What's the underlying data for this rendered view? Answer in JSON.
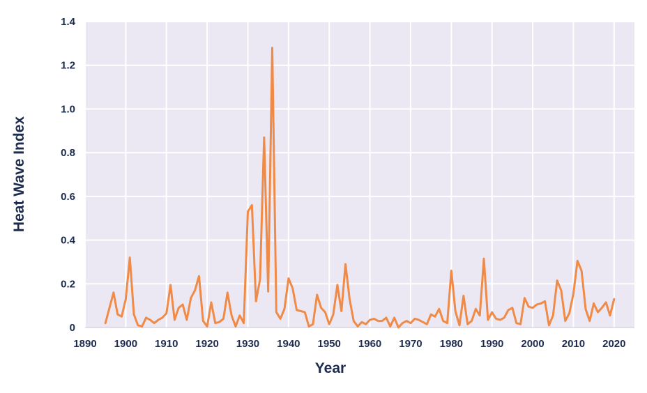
{
  "chart_data": {
    "type": "line",
    "title": "",
    "xlabel": "Year",
    "ylabel": "Heat Wave Index",
    "xlim": [
      1890,
      2025
    ],
    "ylim": [
      0,
      1.4
    ],
    "x_ticks": [
      1890,
      1900,
      1910,
      1920,
      1930,
      1940,
      1950,
      1960,
      1970,
      1980,
      1990,
      2000,
      2010,
      2020
    ],
    "y_ticks": [
      "0",
      "0.2",
      "0.4",
      "0.6",
      "0.8",
      "1.0",
      "1.2",
      "1.4"
    ],
    "grid": true,
    "colors": {
      "line": "#f08a47",
      "plot_background": "#ebe8f3",
      "grid": "#ffffff",
      "text": "#1d2b4f"
    },
    "series": [
      {
        "x": [
          1895,
          1896,
          1897,
          1898,
          1899,
          1900,
          1901,
          1902,
          1903,
          1904,
          1905,
          1906,
          1907,
          1908,
          1909,
          1910,
          1911,
          1912,
          1913,
          1914,
          1915,
          1916,
          1917,
          1918,
          1919,
          1920,
          1921,
          1922,
          1923,
          1924,
          1925,
          1926,
          1927,
          1928,
          1929,
          1930,
          1931,
          1932,
          1933,
          1934,
          1935,
          1936,
          1937,
          1938,
          1939,
          1940,
          1941,
          1942,
          1943,
          1944,
          1945,
          1946,
          1947,
          1948,
          1949,
          1950,
          1951,
          1952,
          1953,
          1954,
          1955,
          1956,
          1957,
          1958,
          1959,
          1960,
          1961,
          1962,
          1963,
          1964,
          1965,
          1966,
          1967,
          1968,
          1969,
          1970,
          1971,
          1972,
          1973,
          1974,
          1975,
          1976,
          1977,
          1978,
          1979,
          1980,
          1981,
          1982,
          1983,
          1984,
          1985,
          1986,
          1987,
          1988,
          1989,
          1990,
          1991,
          1992,
          1993,
          1994,
          1995,
          1996,
          1997,
          1998,
          1999,
          2000,
          2001,
          2002,
          2003,
          2004,
          2005,
          2006,
          2007,
          2008,
          2009,
          2010,
          2011,
          2012,
          2013,
          2014,
          2015,
          2016,
          2017,
          2018,
          2019,
          2020
        ],
        "values": [
          0.02,
          0.09,
          0.16,
          0.06,
          0.05,
          0.13,
          0.32,
          0.06,
          0.01,
          0.005,
          0.045,
          0.035,
          0.02,
          0.035,
          0.045,
          0.065,
          0.195,
          0.035,
          0.09,
          0.105,
          0.035,
          0.135,
          0.17,
          0.235,
          0.03,
          0.005,
          0.115,
          0.02,
          0.025,
          0.04,
          0.16,
          0.055,
          0.005,
          0.055,
          0.02,
          0.53,
          0.56,
          0.12,
          0.22,
          0.87,
          0.165,
          1.28,
          0.07,
          0.04,
          0.085,
          0.225,
          0.18,
          0.08,
          0.075,
          0.07,
          0.005,
          0.015,
          0.15,
          0.09,
          0.07,
          0.015,
          0.06,
          0.195,
          0.075,
          0.29,
          0.13,
          0.03,
          0.005,
          0.025,
          0.015,
          0.035,
          0.04,
          0.03,
          0.03,
          0.045,
          0.005,
          0.045,
          0.0,
          0.02,
          0.03,
          0.02,
          0.04,
          0.035,
          0.025,
          0.015,
          0.06,
          0.05,
          0.085,
          0.03,
          0.02,
          0.26,
          0.075,
          0.01,
          0.145,
          0.015,
          0.03,
          0.085,
          0.055,
          0.315,
          0.035,
          0.07,
          0.04,
          0.035,
          0.045,
          0.08,
          0.09,
          0.02,
          0.015,
          0.135,
          0.095,
          0.09,
          0.105,
          0.11,
          0.12,
          0.01,
          0.055,
          0.215,
          0.17,
          0.03,
          0.065,
          0.155,
          0.305,
          0.26,
          0.085,
          0.03,
          0.11,
          0.07,
          0.09,
          0.115,
          0.055,
          0.13
        ]
      }
    ]
  }
}
